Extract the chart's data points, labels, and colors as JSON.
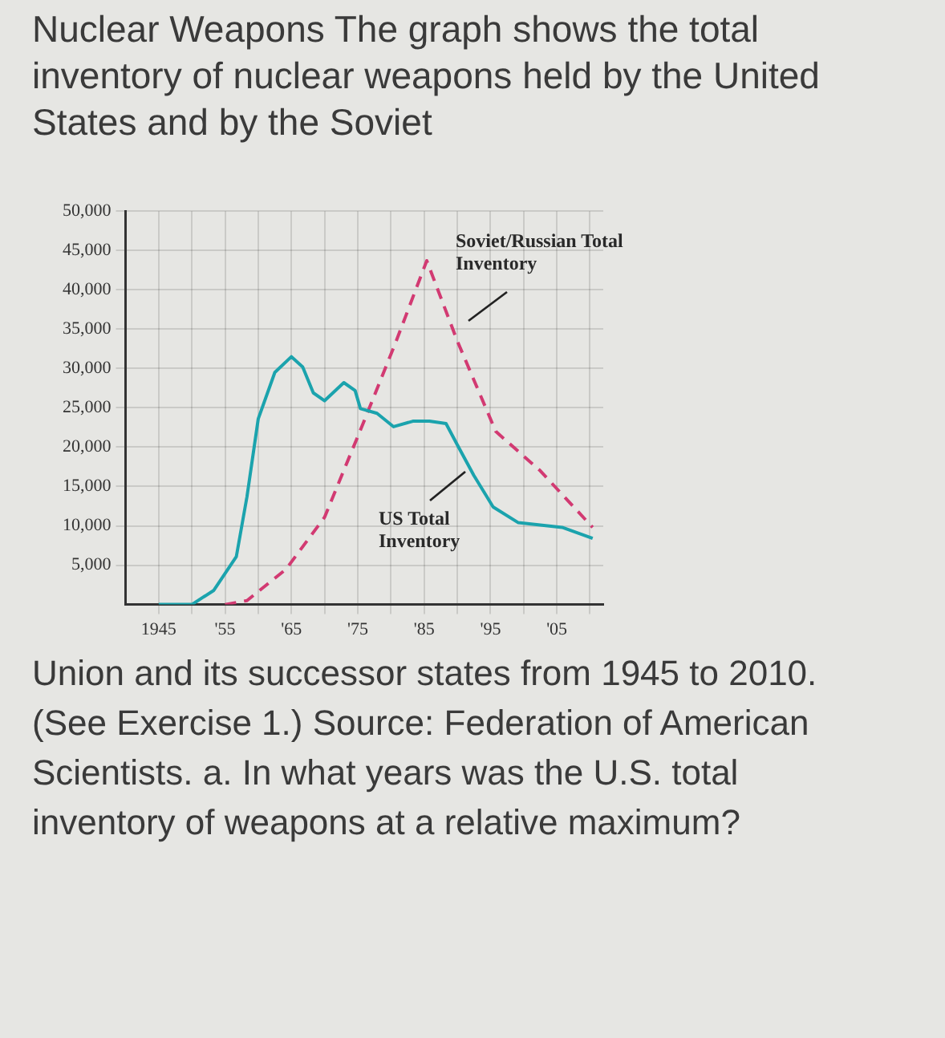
{
  "chart_data": {
    "type": "line",
    "title": "Nuclear Weapons The graph shows the total inventory of nuclear weapons held by the United States and by the Soviet",
    "series": [
      {
        "color": "#1ba3ad",
        "line_style": "solid",
        "x": [
          1945,
          1950,
          1953.3,
          1956.7,
          1958.3,
          1960,
          1962.5,
          1965,
          1966.7,
          1968.3,
          1970,
          1972.9,
          1974.6,
          1975.4,
          1977.9,
          1980.4,
          1983.3,
          1985.8,
          1988.3,
          1990,
          1992.5,
          1995.4,
          1999.2,
          2002.5,
          2005.8,
          2010.4
        ],
        "values": [
          0,
          0,
          1800,
          6100,
          13700,
          23600,
          29500,
          31500,
          30200,
          26900,
          25900,
          28200,
          27200,
          24900,
          24300,
          22600,
          23300,
          23300,
          23000,
          20300,
          16400,
          12400,
          10400,
          10100,
          9800,
          8400
        ]
      },
      {
        "color": "#d23a72",
        "line_style": "dashed",
        "x": [
          1955,
          1958.3,
          1964.2,
          1970,
          1975.8,
          1980.8,
          1985.4,
          1990,
          1995.8,
          2002.5,
          2010.4
        ],
        "values": [
          0,
          500,
          4500,
          11100,
          23000,
          33500,
          43700,
          33500,
          22000,
          17000,
          9800
        ]
      }
    ],
    "xlim": [
      1940,
      2012
    ],
    "xticks": [
      {
        "value": 1945,
        "label": "1945"
      },
      {
        "value": 1950,
        "label": null
      },
      {
        "value": 1955,
        "label": "'55"
      },
      {
        "value": 1960,
        "label": null
      },
      {
        "value": 1965,
        "label": "'65"
      },
      {
        "value": 1970,
        "label": null
      },
      {
        "value": 1975,
        "label": "'75"
      },
      {
        "value": 1980,
        "label": null
      },
      {
        "value": 1985,
        "label": "'85"
      },
      {
        "value": 1990,
        "label": null
      },
      {
        "value": 1995,
        "label": "'95"
      },
      {
        "value": 2000,
        "label": null
      },
      {
        "value": 2005,
        "label": "'05"
      },
      {
        "value": 2010,
        "label": null
      }
    ],
    "ylim": [
      0,
      50000
    ],
    "yticks": [
      {
        "value": 5000,
        "label": "5,000"
      },
      {
        "value": 10000,
        "label": "10,000"
      },
      {
        "value": 15000,
        "label": "15,000"
      },
      {
        "value": 20000,
        "label": "20,000"
      },
      {
        "value": 25000,
        "label": "25,000"
      },
      {
        "value": 30000,
        "label": "30,000"
      },
      {
        "value": 35000,
        "label": "35,000"
      },
      {
        "value": 40000,
        "label": "40,000"
      },
      {
        "value": 45000,
        "label": "45,000"
      },
      {
        "value": 50000,
        "label": "50,000"
      }
    ],
    "grid": true,
    "legend": false,
    "marker": "none",
    "annotations": [
      "Soviet/Russian Total Inventory",
      "US Total Inventory",
      "Union and its successor states from 1945 to 2010. (See Exercise 1.) Source: Federation of American Scientists. a. In what years was the U.S. total inventory of weapons at a relative maximum?"
    ]
  }
}
